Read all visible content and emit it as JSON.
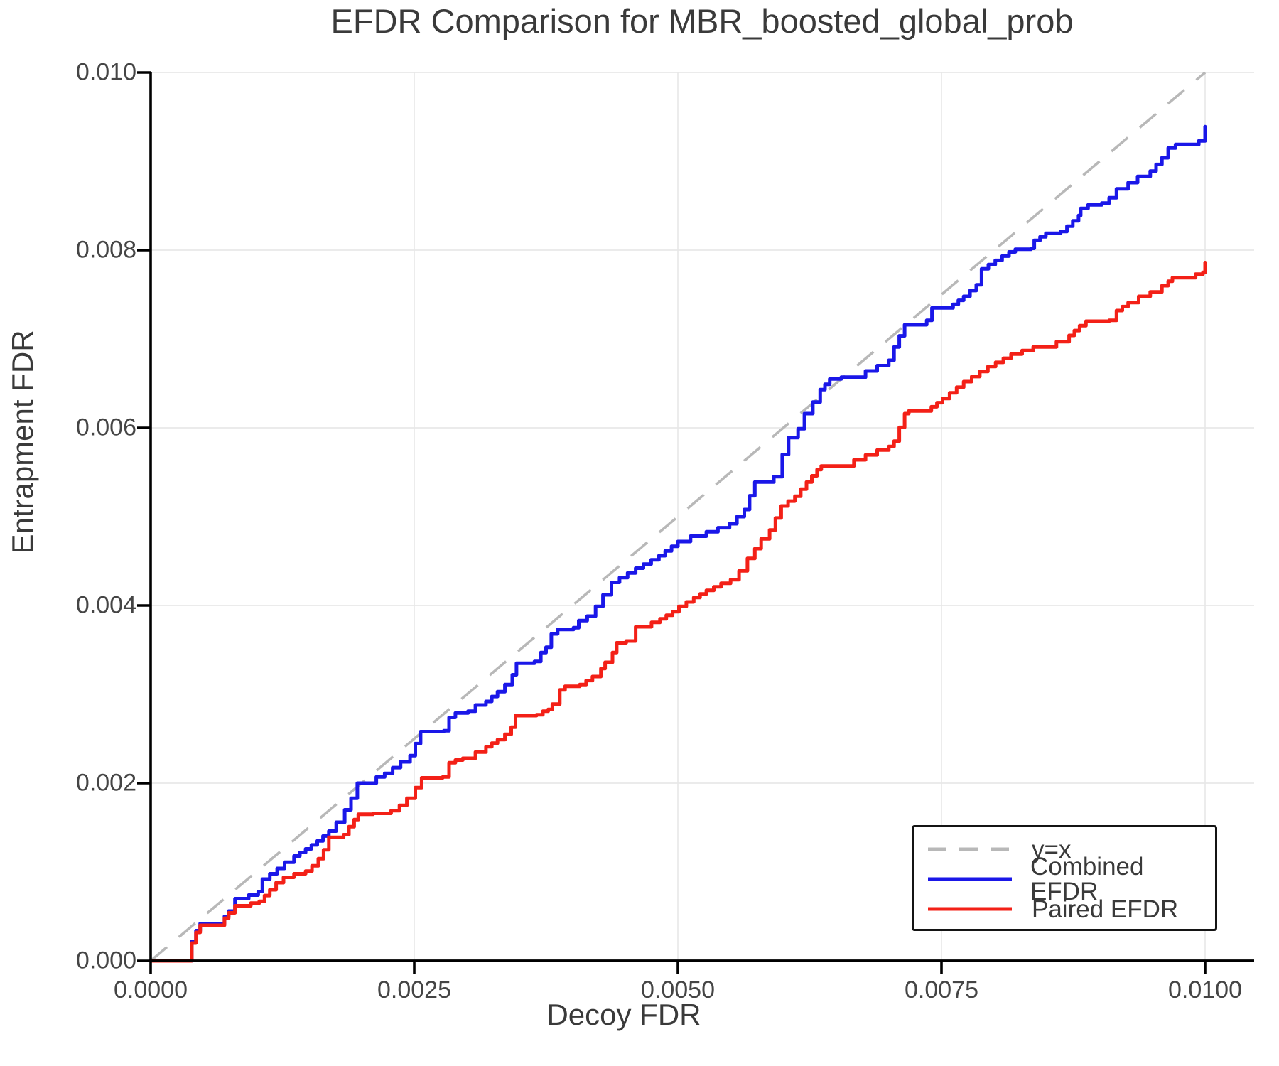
{
  "chart_data": {
    "type": "line",
    "title": "EFDR Comparison for MBR_boosted_global_prob",
    "xlabel": "Decoy FDR",
    "ylabel": "Entrapment FDR",
    "xlim": [
      0,
      0.010465
    ],
    "ylim": [
      0,
      0.01
    ],
    "grid": true,
    "grid_color": "#e8e8e8",
    "xticks": [
      {
        "v": 0.0,
        "label": "0.0000"
      },
      {
        "v": 0.0025,
        "label": "0.0025"
      },
      {
        "v": 0.005,
        "label": "0.0050"
      },
      {
        "v": 0.0075,
        "label": "0.0075"
      },
      {
        "v": 0.01,
        "label": "0.0100"
      }
    ],
    "yticks": [
      {
        "v": 0.0,
        "label": "0.000"
      },
      {
        "v": 0.002,
        "label": "0.002"
      },
      {
        "v": 0.004,
        "label": "0.004"
      },
      {
        "v": 0.006,
        "label": "0.006"
      },
      {
        "v": 0.008,
        "label": "0.008"
      },
      {
        "v": 0.01,
        "label": "0.010"
      }
    ],
    "legend": {
      "position": "lower right",
      "items": [
        {
          "label": "y=x",
          "color": "#b8b8b8",
          "dashed": true
        },
        {
          "label": "Combined EFDR",
          "color": "#1a17e8",
          "dashed": false
        },
        {
          "label": "Paired EFDR",
          "color": "#f32017",
          "dashed": false
        }
      ]
    },
    "series": [
      {
        "name": "y=x",
        "color": "#b8b8b8",
        "style": "dashed",
        "interpolation": "linear",
        "points": [
          [
            0,
            0
          ],
          [
            0.01,
            0.01
          ]
        ]
      },
      {
        "name": "Combined EFDR",
        "color": "#1a17e8",
        "style": "solid",
        "interpolation": "step",
        "points": [
          [
            0,
            0
          ],
          [
            0.00037,
            0
          ],
          [
            0.00039,
            0.00022
          ],
          [
            0.00043,
            0.00034
          ],
          [
            0.00047,
            0.00042
          ],
          [
            0.00066,
            0.00042
          ],
          [
            0.0007,
            0.0005
          ],
          [
            0.00074,
            0.00056
          ],
          [
            0.0008,
            0.0007
          ],
          [
            0.00093,
            0.00074
          ],
          [
            0.00102,
            0.00078
          ],
          [
            0.00106,
            0.00092
          ],
          [
            0.00113,
            0.00098
          ],
          [
            0.0012,
            0.00104
          ],
          [
            0.00127,
            0.00111
          ],
          [
            0.00136,
            0.00118
          ],
          [
            0.00147,
            0.00126
          ],
          [
            0.00158,
            0.00135
          ],
          [
            0.00169,
            0.00146
          ],
          [
            0.00176,
            0.00156
          ],
          [
            0.00184,
            0.0017
          ],
          [
            0.0019,
            0.00183
          ],
          [
            0.00196,
            0.002
          ],
          [
            0.00214,
            0.00207
          ],
          [
            0.00222,
            0.00211
          ],
          [
            0.00237,
            0.00224
          ],
          [
            0.00246,
            0.00231
          ],
          [
            0.00256,
            0.00258
          ],
          [
            0.00278,
            0.00259
          ],
          [
            0.00283,
            0.00274
          ],
          [
            0.00289,
            0.00279
          ],
          [
            0.00301,
            0.00281
          ],
          [
            0.00308,
            0.00288
          ],
          [
            0.00318,
            0.00292
          ],
          [
            0.00329,
            0.00303
          ],
          [
            0.00336,
            0.00311
          ],
          [
            0.00343,
            0.00322
          ],
          [
            0.00347,
            0.00335
          ],
          [
            0.00364,
            0.00337
          ],
          [
            0.0037,
            0.00347
          ],
          [
            0.00375,
            0.00353
          ],
          [
            0.0038,
            0.00368
          ],
          [
            0.00386,
            0.00373
          ],
          [
            0.00401,
            0.00375
          ],
          [
            0.00406,
            0.00383
          ],
          [
            0.00414,
            0.00388
          ],
          [
            0.00422,
            0.00399
          ],
          [
            0.00429,
            0.00412
          ],
          [
            0.00437,
            0.00426
          ],
          [
            0.0046,
            0.00442
          ],
          [
            0.00482,
            0.00456
          ],
          [
            0.005,
            0.00472
          ],
          [
            0.00512,
            0.00478
          ],
          [
            0.00527,
            0.00483
          ],
          [
            0.00549,
            0.00492
          ],
          [
            0.00563,
            0.00508
          ],
          [
            0.00573,
            0.00539
          ],
          [
            0.00591,
            0.00545
          ],
          [
            0.00599,
            0.0057
          ],
          [
            0.00605,
            0.00589
          ],
          [
            0.00614,
            0.00599
          ],
          [
            0.0062,
            0.00616
          ],
          [
            0.00628,
            0.00629
          ],
          [
            0.00635,
            0.00643
          ],
          [
            0.00644,
            0.00655
          ],
          [
            0.00655,
            0.00657
          ],
          [
            0.00678,
            0.00664
          ],
          [
            0.007,
            0.00676
          ],
          [
            0.00705,
            0.00691
          ],
          [
            0.00715,
            0.00716
          ],
          [
            0.00736,
            0.00721
          ],
          [
            0.00741,
            0.00735
          ],
          [
            0.00761,
            0.00739
          ],
          [
            0.00771,
            0.00748
          ],
          [
            0.00783,
            0.00761
          ],
          [
            0.00788,
            0.00779
          ],
          [
            0.00814,
            0.00798
          ],
          [
            0.0082,
            0.00801
          ],
          [
            0.00835,
            0.00802
          ],
          [
            0.00838,
            0.00811
          ],
          [
            0.00849,
            0.00819
          ],
          [
            0.00863,
            0.00821
          ],
          [
            0.00869,
            0.00827
          ],
          [
            0.0088,
            0.00839
          ],
          [
            0.00882,
            0.00847
          ],
          [
            0.00889,
            0.00851
          ],
          [
            0.00902,
            0.00853
          ],
          [
            0.00909,
            0.00859
          ],
          [
            0.00916,
            0.00869
          ],
          [
            0.00927,
            0.00876
          ],
          [
            0.00936,
            0.00883
          ],
          [
            0.00948,
            0.00889
          ],
          [
            0.00959,
            0.00904
          ],
          [
            0.00965,
            0.00915
          ],
          [
            0.00972,
            0.00919
          ],
          [
            0.00992,
            0.00919
          ],
          [
            0.00994,
            0.00923
          ],
          [
            0.01,
            0.00923
          ],
          [
            0.01,
            0.00939
          ]
        ]
      },
      {
        "name": "Paired EFDR",
        "color": "#f32017",
        "style": "solid",
        "interpolation": "step",
        "points": [
          [
            0,
            0
          ],
          [
            0.00037,
            0
          ],
          [
            0.00039,
            0.0002
          ],
          [
            0.00043,
            0.00032
          ],
          [
            0.00047,
            0.0004
          ],
          [
            0.00066,
            0.0004
          ],
          [
            0.0007,
            0.00048
          ],
          [
            0.00074,
            0.00054
          ],
          [
            0.0008,
            0.00062
          ],
          [
            0.00095,
            0.00065
          ],
          [
            0.00103,
            0.00067
          ],
          [
            0.00113,
            0.0008
          ],
          [
            0.00119,
            0.00088
          ],
          [
            0.00126,
            0.00094
          ],
          [
            0.00136,
            0.00098
          ],
          [
            0.00147,
            0.00101
          ],
          [
            0.00153,
            0.00107
          ],
          [
            0.00159,
            0.00115
          ],
          [
            0.00164,
            0.00125
          ],
          [
            0.00169,
            0.00139
          ],
          [
            0.00183,
            0.00142
          ],
          [
            0.00188,
            0.00151
          ],
          [
            0.00193,
            0.00159
          ],
          [
            0.00197,
            0.00165
          ],
          [
            0.00211,
            0.00166
          ],
          [
            0.00228,
            0.00169
          ],
          [
            0.00236,
            0.00175
          ],
          [
            0.00243,
            0.00183
          ],
          [
            0.00251,
            0.00195
          ],
          [
            0.00257,
            0.00206
          ],
          [
            0.00277,
            0.00207
          ],
          [
            0.00283,
            0.00223
          ],
          [
            0.00289,
            0.00226
          ],
          [
            0.00296,
            0.00228
          ],
          [
            0.00308,
            0.00235
          ],
          [
            0.00318,
            0.00241
          ],
          [
            0.00329,
            0.00249
          ],
          [
            0.00336,
            0.00255
          ],
          [
            0.00342,
            0.00263
          ],
          [
            0.00346,
            0.00276
          ],
          [
            0.00366,
            0.00277
          ],
          [
            0.00372,
            0.00281
          ],
          [
            0.00377,
            0.00283
          ],
          [
            0.00381,
            0.00289
          ],
          [
            0.00388,
            0.00305
          ],
          [
            0.00393,
            0.00309
          ],
          [
            0.00407,
            0.00311
          ],
          [
            0.00419,
            0.0032
          ],
          [
            0.00427,
            0.00329
          ],
          [
            0.00431,
            0.00336
          ],
          [
            0.00438,
            0.00347
          ],
          [
            0.00442,
            0.00358
          ],
          [
            0.00451,
            0.0036
          ],
          [
            0.0046,
            0.00376
          ],
          [
            0.00475,
            0.00381
          ],
          [
            0.00483,
            0.00385
          ],
          [
            0.00495,
            0.00393
          ],
          [
            0.00501,
            0.00399
          ],
          [
            0.00515,
            0.00409
          ],
          [
            0.00527,
            0.00417
          ],
          [
            0.00541,
            0.00425
          ],
          [
            0.0055,
            0.00429
          ],
          [
            0.00558,
            0.00439
          ],
          [
            0.00566,
            0.00453
          ],
          [
            0.00573,
            0.00464
          ],
          [
            0.00579,
            0.00475
          ],
          [
            0.00587,
            0.00485
          ],
          [
            0.00598,
            0.00512
          ],
          [
            0.00611,
            0.00523
          ],
          [
            0.00622,
            0.00539
          ],
          [
            0.00632,
            0.00553
          ],
          [
            0.00636,
            0.00557
          ],
          [
            0.00652,
            0.00557
          ],
          [
            0.00667,
            0.00564
          ],
          [
            0.00689,
            0.00575
          ],
          [
            0.007,
            0.00579
          ],
          [
            0.00705,
            0.00585
          ],
          [
            0.00715,
            0.00616
          ],
          [
            0.00719,
            0.00619
          ],
          [
            0.00735,
            0.00619
          ],
          [
            0.00751,
            0.00633
          ],
          [
            0.00771,
            0.00652
          ],
          [
            0.00794,
            0.00669
          ],
          [
            0.00816,
            0.00683
          ],
          [
            0.00837,
            0.00691
          ],
          [
            0.00859,
            0.00697
          ],
          [
            0.00871,
            0.00704
          ],
          [
            0.00881,
            0.00715
          ],
          [
            0.00887,
            0.0072
          ],
          [
            0.00909,
            0.00721
          ],
          [
            0.00916,
            0.00732
          ],
          [
            0.00927,
            0.00741
          ],
          [
            0.00937,
            0.00748
          ],
          [
            0.00948,
            0.00753
          ],
          [
            0.00959,
            0.0076
          ],
          [
            0.00965,
            0.00765
          ],
          [
            0.00969,
            0.00769
          ],
          [
            0.00988,
            0.00769
          ],
          [
            0.00991,
            0.00773
          ],
          [
            0.00998,
            0.00775
          ],
          [
            0.01,
            0.00786
          ]
        ]
      }
    ]
  }
}
